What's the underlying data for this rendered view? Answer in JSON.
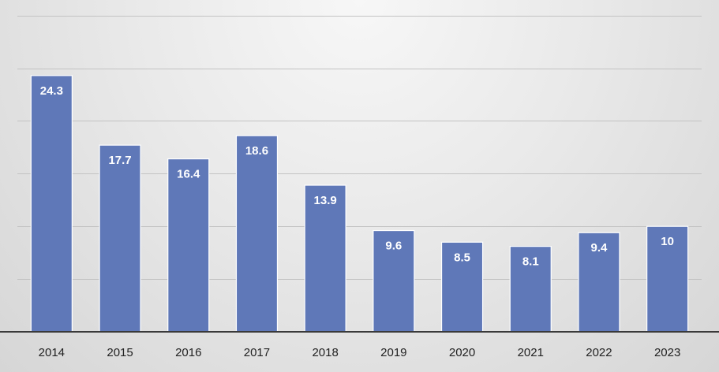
{
  "chart_data": {
    "type": "bar",
    "title": "",
    "xlabel": "",
    "ylabel": "",
    "categories": [
      "2014",
      "2015",
      "2016",
      "2017",
      "2018",
      "2019",
      "2020",
      "2021",
      "2022",
      "2023"
    ],
    "values": [
      24.3,
      17.7,
      16.4,
      18.6,
      13.9,
      9.6,
      8.5,
      8.1,
      9.4,
      10
    ],
    "data_labels": [
      "24.3",
      "17.7",
      "16.4",
      "18.6",
      "13.9",
      "9.6",
      "8.5",
      "8.1",
      "9.4",
      "10"
    ],
    "ylim": [
      0,
      30
    ],
    "y_gridlines": [
      0,
      5,
      10,
      15,
      20,
      25,
      30
    ],
    "grid": true,
    "legend": "none",
    "colors": {
      "bar": "#5f78b8",
      "bar_edge": "#ffffff",
      "label": "#ffffff",
      "grid": "#c3c3c3",
      "axis": "#3a3a3a"
    }
  }
}
